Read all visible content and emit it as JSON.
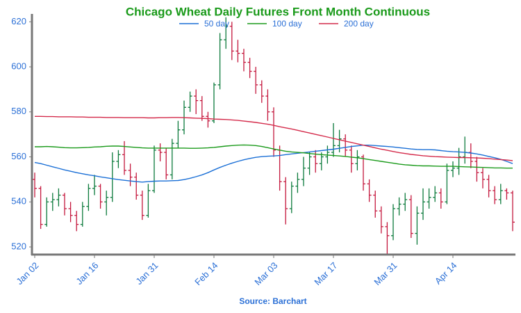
{
  "chart_data": {
    "type": "ohlc",
    "title": "Chicago Wheat Daily Futures Front Month Continuous",
    "source": "Source: Barchart",
    "categories": [
      "Jan 02",
      null,
      null,
      null,
      null,
      null,
      null,
      null,
      null,
      null,
      "Jan 16",
      null,
      null,
      null,
      null,
      null,
      null,
      null,
      null,
      null,
      "Jan 31",
      null,
      null,
      null,
      null,
      null,
      null,
      null,
      null,
      null,
      "Feb 14",
      null,
      null,
      null,
      null,
      null,
      null,
      null,
      null,
      null,
      "Mar 03",
      null,
      null,
      null,
      null,
      null,
      null,
      null,
      null,
      null,
      "Mar 17",
      null,
      null,
      null,
      null,
      null,
      null,
      null,
      null,
      null,
      "Mar 31",
      null,
      null,
      null,
      null,
      null,
      null,
      null,
      null,
      null,
      "Apr 14",
      null,
      null,
      null,
      null,
      null,
      null,
      null,
      null,
      null,
      null
    ],
    "open": [
      550,
      546,
      530,
      540,
      541,
      543,
      537,
      534,
      530,
      538,
      546,
      547,
      540,
      542,
      558,
      561,
      554,
      551,
      543,
      534,
      545,
      563,
      562,
      552,
      566,
      572,
      582,
      587,
      585,
      578,
      576,
      592,
      612,
      618,
      607,
      606,
      602,
      598,
      592,
      587,
      580,
      563,
      549,
      537,
      547,
      550,
      555,
      560,
      557,
      560,
      562,
      565,
      568,
      563,
      557,
      560,
      548,
      543,
      536,
      529,
      525,
      537,
      539,
      541,
      526,
      535,
      540,
      542,
      544,
      540,
      554,
      555,
      560,
      562,
      558,
      553,
      550,
      545,
      541,
      545,
      544
    ],
    "high": [
      553,
      547,
      542,
      544,
      546,
      544,
      540,
      536,
      540,
      548,
      552,
      548,
      545,
      562,
      563,
      567,
      557,
      553,
      545,
      548,
      565,
      566,
      564,
      568,
      576,
      585,
      589,
      590,
      587,
      580,
      593,
      615,
      622,
      620,
      612,
      608,
      604,
      600,
      594,
      590,
      582,
      565,
      551,
      549,
      553,
      560,
      562,
      563,
      562,
      565,
      575,
      572,
      570,
      565,
      563,
      561,
      550,
      545,
      538,
      531,
      539,
      542,
      544,
      543,
      538,
      546,
      546,
      547,
      546,
      557,
      558,
      564,
      569,
      566,
      560,
      555,
      552,
      547,
      548,
      546,
      545
    ],
    "low": [
      542,
      528,
      529,
      536,
      538,
      534,
      531,
      527,
      529,
      536,
      543,
      537,
      534,
      540,
      555,
      552,
      547,
      541,
      532,
      533,
      544,
      558,
      550,
      550,
      564,
      570,
      580,
      579,
      576,
      573,
      575,
      590,
      608,
      603,
      602,
      598,
      595,
      588,
      584,
      576,
      560,
      545,
      530,
      535,
      544,
      547,
      552,
      553,
      554,
      557,
      560,
      562,
      560,
      553,
      554,
      545,
      540,
      533,
      526,
      517,
      523,
      534,
      536,
      524,
      521,
      532,
      537,
      540,
      537,
      539,
      551,
      552,
      557,
      555,
      549,
      546,
      542,
      539,
      539,
      541,
      527
    ],
    "close": [
      546,
      530,
      540,
      541,
      543,
      537,
      534,
      530,
      538,
      546,
      547,
      540,
      542,
      558,
      561,
      554,
      551,
      543,
      534,
      545,
      563,
      562,
      552,
      566,
      572,
      582,
      587,
      585,
      578,
      576,
      592,
      612,
      618,
      607,
      606,
      602,
      598,
      592,
      587,
      580,
      563,
      549,
      537,
      547,
      550,
      555,
      560,
      557,
      560,
      562,
      565,
      568,
      563,
      557,
      560,
      548,
      543,
      536,
      529,
      525,
      537,
      539,
      541,
      526,
      535,
      540,
      542,
      544,
      540,
      554,
      555,
      560,
      562,
      558,
      553,
      550,
      545,
      541,
      545,
      544,
      531
    ],
    "up_color": "#0b7a3b",
    "down_color": "#c4163c",
    "series": [
      {
        "name": "50 day",
        "color": "#1a6fd6",
        "values": [
          557.5,
          557,
          556.3,
          555.6,
          554.9,
          554.2,
          553.6,
          553,
          552.5,
          552,
          551.6,
          551.1,
          550.7,
          550.3,
          549.9,
          549.6,
          549.3,
          549,
          548.8,
          549,
          549.2,
          549.3,
          549.3,
          549.4,
          549.5,
          549.9,
          550.5,
          551.2,
          552,
          553,
          554.2,
          555.3,
          556.3,
          557.2,
          558,
          558.7,
          559.3,
          559.8,
          560.1,
          560.3,
          560.4,
          560.6,
          561,
          561.3,
          561.6,
          561.9,
          562.2,
          562.5,
          562.8,
          563.1,
          563.4,
          563.8,
          564.2,
          564.6,
          564.9,
          565.2,
          565.2,
          565,
          564.8,
          564.6,
          564.4,
          564.1,
          563.8,
          563.5,
          563.3,
          563.2,
          563.2,
          563.1,
          562.8,
          562.5,
          562.3,
          562.2,
          562,
          561.7,
          561.3,
          560.8,
          560.2,
          559.6,
          558.9,
          558,
          557
        ]
      },
      {
        "name": "100 day",
        "color": "#1a9a1a",
        "values": [
          564.5,
          564.5,
          564.6,
          564.5,
          564.3,
          564.1,
          564,
          564,
          564.1,
          564.2,
          564.4,
          564.5,
          564.7,
          564.8,
          564.8,
          564.6,
          564.4,
          564.2,
          564,
          563.9,
          563.9,
          563.9,
          563.9,
          563.9,
          563.9,
          563.9,
          563.8,
          563.8,
          563.9,
          564,
          564.2,
          564.5,
          564.8,
          565,
          565.2,
          565.3,
          565.2,
          565,
          564.6,
          564.1,
          563.5,
          563,
          562.5,
          562.2,
          562,
          561.8,
          561.5,
          561.2,
          561,
          560.8,
          560.6,
          560.4,
          560.2,
          559.9,
          559.6,
          559.2,
          558.8,
          558.4,
          558,
          557.6,
          557.2,
          556.8,
          556.5,
          556.3,
          556.1,
          556,
          556,
          555.9,
          555.8,
          555.8,
          555.8,
          555.7,
          555.6,
          555.5,
          555.4,
          555.3,
          555.2,
          555.1,
          555.1,
          555,
          555
        ]
      },
      {
        "name": "200 day",
        "color": "#d42a4a",
        "values": [
          578,
          578,
          577.9,
          577.9,
          577.8,
          577.8,
          577.8,
          577.7,
          577.7,
          577.6,
          577.6,
          577.6,
          577.5,
          577.5,
          577.5,
          577.4,
          577.4,
          577.4,
          577.4,
          577.3,
          577.3,
          577.4,
          577.4,
          577.5,
          577.5,
          577.4,
          577.3,
          577.2,
          577.1,
          577,
          576.8,
          576.7,
          576.6,
          576.4,
          576.2,
          575.9,
          575.6,
          575.3,
          574.9,
          574.5,
          574,
          573.4,
          572.9,
          572.4,
          571.8,
          571.2,
          570.6,
          570,
          569.4,
          568.8,
          568.2,
          567.6,
          567,
          566.4,
          565.8,
          565.2,
          564.6,
          564,
          563.4,
          562.9,
          562.4,
          561.9,
          561.5,
          561.1,
          560.8,
          560.5,
          560.3,
          560.1,
          560,
          559.9,
          559.8,
          559.7,
          559.7,
          559.6,
          559.5,
          559.4,
          559.2,
          559,
          558.8,
          558.6,
          558.3
        ]
      }
    ],
    "ylim": [
      516.6,
      623.5
    ],
    "yticks": [
      520,
      540,
      560,
      580,
      600,
      620
    ],
    "legend": "top"
  }
}
